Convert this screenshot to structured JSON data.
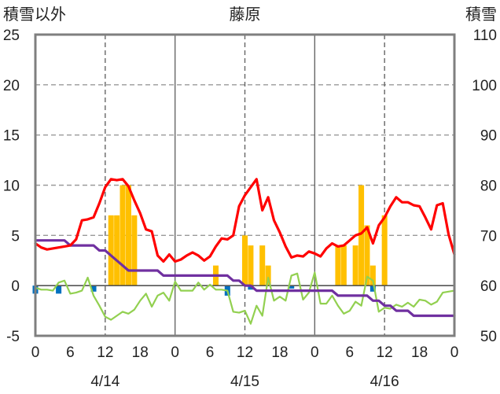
{
  "chart_data": {
    "type": "bar+line",
    "title": "藤原",
    "left_axis_label": "積雪以外",
    "right_axis_label": "積雪",
    "left_ylim": [
      -5,
      25
    ],
    "left_ticks": [
      "25",
      "20",
      "15",
      "10",
      "5",
      "0",
      "-5"
    ],
    "right_ylim": [
      50,
      110
    ],
    "right_ticks": [
      "110",
      "100",
      "90",
      "80",
      "70",
      "60",
      "50"
    ],
    "xlim": [
      0,
      72
    ],
    "x_tick_labels": [
      "0",
      "6",
      "12",
      "18",
      "0",
      "6",
      "12",
      "18",
      "0",
      "6",
      "12",
      "18",
      "0"
    ],
    "date_labels": [
      "4/14",
      "4/15",
      "4/16"
    ],
    "grid": true,
    "colors": {
      "temperature": "#ff0000",
      "snow_depth": "#7030a0",
      "other_line": "#92d050",
      "bars_positive": "#ffc000",
      "bars_negative": "#0070c0",
      "grid": "#9a9a9a",
      "frame": "#7f7f7f"
    },
    "bars_positive": {
      "x": [
        13,
        14,
        15,
        16,
        17,
        31,
        36,
        37,
        39,
        40,
        52,
        53,
        55,
        56,
        57,
        58,
        60
      ],
      "values": [
        7,
        7,
        10,
        10,
        7,
        2,
        5,
        4,
        4,
        2,
        4,
        4,
        4,
        10,
        6,
        2,
        7
      ]
    },
    "bars_negative": {
      "x": [
        0,
        4,
        10,
        33,
        37,
        44,
        58
      ],
      "values": [
        -0.8,
        -0.8,
        -0.6,
        -1,
        -0.4,
        -0.3,
        -0.6
      ]
    },
    "temperature_series": {
      "x": [
        0,
        1,
        2,
        3,
        4,
        5,
        6,
        7,
        8,
        9,
        10,
        11,
        12,
        13,
        14,
        15,
        16,
        17,
        18,
        19,
        20,
        21,
        22,
        23,
        24,
        25,
        26,
        27,
        28,
        29,
        30,
        31,
        32,
        33,
        34,
        35,
        36,
        37,
        38,
        39,
        40,
        41,
        42,
        43,
        44,
        45,
        46,
        47,
        48,
        49,
        50,
        51,
        52,
        53,
        54,
        55,
        56,
        57,
        58,
        59,
        60,
        61,
        62,
        63,
        64,
        65,
        66,
        67,
        68,
        69,
        70,
        71,
        72
      ],
      "values": [
        4.2,
        3.8,
        3.6,
        3.7,
        3.8,
        3.9,
        4.0,
        4.6,
        6.5,
        6.6,
        6.8,
        8.2,
        9.8,
        10.6,
        10.5,
        10.6,
        9.9,
        8.5,
        7.2,
        5.6,
        5.4,
        3.0,
        2.4,
        3.1,
        2.4,
        2.6,
        3.0,
        3.3,
        3.0,
        2.5,
        2.9,
        3.9,
        4.7,
        4.6,
        5.0,
        7.9,
        9.0,
        9.8,
        10.6,
        7.5,
        8.8,
        6.5,
        5.3,
        3.9,
        2.8,
        3.0,
        2.9,
        3.4,
        3.2,
        2.9,
        3.7,
        4.2,
        3.9,
        4.0,
        4.5,
        5.0,
        5.2,
        5.8,
        4.2,
        6.0,
        6.8,
        7.9,
        8.8,
        8.3,
        8.3,
        8.0,
        7.9,
        6.8,
        5.6,
        8.0,
        8.2,
        5.1,
        3.1
      ]
    },
    "snow_depth_series": {
      "x": [
        0,
        2,
        4,
        5,
        6,
        10,
        11,
        12,
        13,
        14,
        15,
        16,
        17,
        18,
        19,
        20,
        21,
        22,
        23,
        24,
        25,
        26,
        27,
        28,
        29,
        30,
        31,
        32,
        33,
        34,
        35,
        36,
        37,
        38,
        39,
        40,
        41,
        42,
        43,
        44,
        45,
        46,
        47,
        48,
        49,
        50,
        51,
        52,
        53,
        54,
        55,
        56,
        57,
        58,
        59,
        60,
        61,
        62,
        63,
        64,
        65,
        66,
        67,
        68,
        69,
        70,
        71,
        72
      ],
      "values": [
        69,
        69,
        69,
        69,
        68,
        68,
        67,
        67,
        66,
        65,
        64,
        63,
        63,
        63,
        63,
        63,
        63,
        62,
        62,
        62,
        62,
        62,
        62,
        62,
        62,
        62,
        62,
        62,
        62,
        61,
        61,
        60,
        60,
        59,
        59,
        59,
        59,
        59,
        59,
        59,
        59,
        59,
        59,
        59,
        59,
        59,
        59,
        58,
        58,
        58,
        58,
        58,
        58,
        57,
        57,
        56,
        56,
        55,
        55,
        55,
        54,
        54,
        54,
        54,
        54,
        54,
        54,
        54
      ]
    },
    "other_series": {
      "x": [
        0,
        1,
        2,
        3,
        4,
        5,
        6,
        7,
        8,
        9,
        10,
        11,
        12,
        13,
        14,
        15,
        16,
        17,
        18,
        19,
        20,
        21,
        22,
        23,
        24,
        25,
        26,
        27,
        28,
        29,
        30,
        31,
        32,
        33,
        34,
        35,
        36,
        37,
        38,
        39,
        40,
        41,
        42,
        43,
        44,
        45,
        46,
        47,
        48,
        49,
        50,
        51,
        52,
        53,
        54,
        55,
        56,
        57,
        58,
        59,
        60,
        61,
        62,
        63,
        64,
        65,
        66,
        67,
        68,
        69,
        70,
        71,
        72
      ],
      "values": [
        -0.2,
        -0.4,
        -0.4,
        -0.5,
        0.3,
        0.5,
        -0.8,
        -0.7,
        -0.5,
        0.8,
        -1.0,
        -2.0,
        -3.1,
        -3.4,
        -3.0,
        -2.6,
        -2.8,
        -2.4,
        -1.5,
        -0.8,
        -2.1,
        -1.0,
        -0.7,
        -1.5,
        0.4,
        -0.5,
        -0.5,
        -0.5,
        0.3,
        -0.4,
        0.1,
        -0.4,
        -0.4,
        -0.5,
        -2.6,
        -2.7,
        -2.5,
        -3.8,
        -2.0,
        -3.0,
        0.8,
        -1.5,
        -1.1,
        -1.5,
        1.0,
        1.2,
        -1.4,
        -0.7,
        1.3,
        -1.8,
        -1.8,
        -1.0,
        -2.0,
        -2.8,
        -2.5,
        -1.6,
        -2.0,
        0.9,
        0.5,
        -2.6,
        -2.2,
        -2.3,
        -1.9,
        -2.1,
        -1.7,
        -2.1,
        -1.4,
        -1.5,
        -1.9,
        -1.6,
        -0.7,
        -0.6,
        -0.5
      ]
    }
  }
}
